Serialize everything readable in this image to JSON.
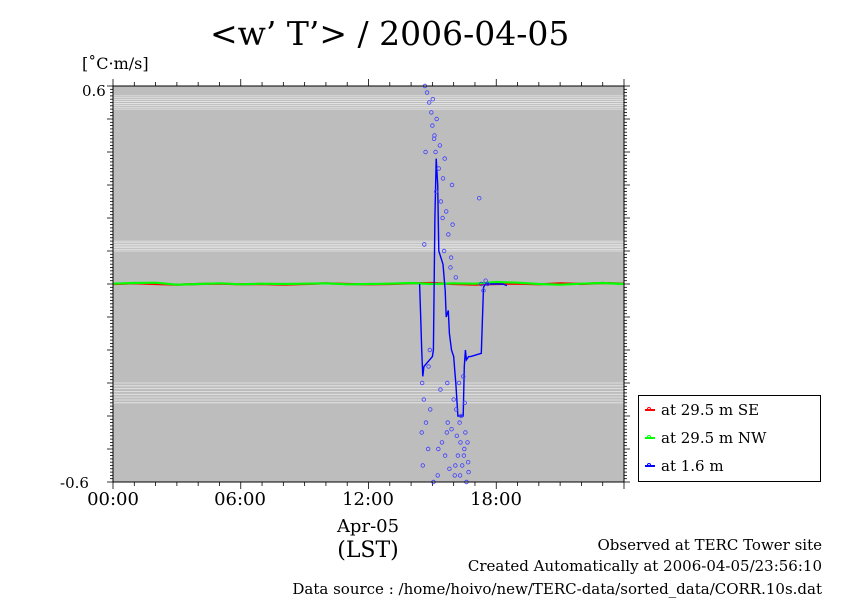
{
  "title": "<w’ T’> / 2006-04-05",
  "unit": "[˚C·m/s]",
  "chart_data": {
    "type": "line",
    "xlabel": "(LST)",
    "x_date_label": "Apr-05",
    "x_ticks": [
      "00:00",
      "06:00",
      "12:00",
      "18:00"
    ],
    "xlim_hours": [
      0,
      24
    ],
    "ylim": [
      -0.6,
      0.6
    ],
    "y_bottom_label": "-0.6",
    "y_top_label": "0.6",
    "grid": "horizontal",
    "legend_position": "bottom-right",
    "background": "#bdbdbd",
    "series": [
      {
        "name": "at 29.5 m SE",
        "color": "#ff0000",
        "x": [
          0,
          1,
          2,
          3,
          4,
          5,
          6,
          7,
          8,
          9,
          10,
          11,
          12,
          13,
          14,
          15,
          16,
          17,
          18,
          19,
          20,
          21,
          22,
          23,
          24
        ],
        "y": [
          0.0,
          0.002,
          0.0,
          -0.002,
          0.0,
          0.001,
          -0.001,
          0.0,
          -0.002,
          0.0,
          0.002,
          0.0,
          -0.001,
          0.0,
          0.002,
          0.003,
          0.0,
          -0.002,
          0.0,
          0.001,
          -0.001,
          0.002,
          0.0,
          0.003,
          0.001
        ]
      },
      {
        "name": "at 29.5 m NW",
        "color": "#00ff00",
        "x": [
          0,
          1,
          2,
          3,
          4,
          5,
          6,
          7,
          8,
          9,
          10,
          11,
          12,
          13,
          14,
          15,
          16,
          17,
          18,
          19,
          20,
          21,
          22,
          23,
          24
        ],
        "y": [
          0.001,
          0.003,
          0.004,
          -0.002,
          0.0,
          0.002,
          -0.001,
          0.001,
          0.0,
          0.001,
          0.002,
          -0.001,
          0.0,
          0.001,
          0.003,
          0.0,
          0.002,
          0.001,
          0.006,
          0.004,
          0.0,
          -0.002,
          0.001,
          0.003,
          0.0
        ]
      },
      {
        "name": "at 1.6 m",
        "color": "#0000ff",
        "x": [
          14.4,
          14.45,
          14.5,
          14.55,
          14.6,
          15.0,
          15.05,
          15.12,
          15.18,
          15.25,
          15.3,
          15.5,
          15.6,
          15.65,
          15.75,
          15.8,
          15.9,
          16.0,
          16.05,
          16.1,
          16.2,
          16.3,
          16.4,
          16.45,
          16.5,
          16.55,
          16.6,
          16.7,
          16.8,
          17.3,
          17.4,
          17.5,
          18.3,
          18.5
        ],
        "y": [
          0.0,
          -0.1,
          -0.2,
          -0.28,
          -0.25,
          -0.22,
          -0.2,
          0.2,
          0.38,
          0.3,
          0.1,
          0.06,
          -0.02,
          -0.1,
          -0.08,
          -0.15,
          -0.2,
          -0.22,
          -0.26,
          -0.3,
          -0.4,
          -0.4,
          -0.4,
          -0.4,
          -0.25,
          -0.2,
          -0.23,
          -0.22,
          -0.22,
          -0.21,
          -0.01,
          0.0,
          0.0,
          -0.005
        ]
      }
    ],
    "scatter": {
      "series": "at 1.6 m",
      "color": "#4040ff",
      "x": [
        14.5,
        14.55,
        14.6,
        14.65,
        14.7,
        14.75,
        14.8,
        14.85,
        14.9,
        14.95,
        15.0,
        15.05,
        15.1,
        15.15,
        15.2,
        15.25,
        15.3,
        15.35,
        15.4,
        15.45,
        15.5,
        15.55,
        15.6,
        15.65,
        15.7,
        15.75,
        15.8,
        15.85,
        15.9,
        15.95,
        16.0,
        16.05,
        16.1,
        16.15,
        16.2,
        16.25,
        16.3,
        16.35,
        16.4,
        16.45,
        16.5,
        16.55,
        16.6,
        16.65,
        16.7,
        17.2,
        17.3,
        17.4,
        17.5,
        17.6,
        14.52,
        14.68,
        14.82,
        15.02,
        15.18,
        15.38,
        15.58,
        15.72,
        15.92,
        16.12,
        16.32,
        16.52,
        14.62,
        14.88,
        15.08,
        15.28,
        15.48,
        15.68,
        15.88,
        16.08,
        16.28,
        16.48,
        16.68
      ],
      "y": [
        -0.45,
        -0.55,
        -0.35,
        0.6,
        -0.42,
        0.58,
        -0.5,
        0.55,
        -0.38,
        0.52,
        0.48,
        -0.6,
        0.45,
        0.4,
        0.5,
        -0.58,
        0.35,
        0.42,
        0.25,
        -0.48,
        0.32,
        0.1,
        -0.52,
        0.22,
        -0.3,
        0.15,
        -0.56,
        0.05,
        -0.44,
        0.18,
        -0.35,
        -0.58,
        0.02,
        -0.46,
        -0.52,
        -0.3,
        -0.58,
        -0.4,
        -0.55,
        -0.28,
        -0.5,
        -0.45,
        -0.6,
        -0.48,
        -0.57,
        0.26,
        0.0,
        -0.02,
        0.01,
        0.0,
        -0.3,
        0.4,
        -0.25,
        0.56,
        0.28,
        -0.32,
        0.38,
        -0.42,
        0.3,
        -0.38,
        -0.48,
        -0.36,
        0.12,
        -0.2,
        0.44,
        -0.5,
        0.2,
        -0.45,
        0.08,
        -0.55,
        -0.42,
        -0.52,
        -0.54
      ]
    }
  },
  "footer": {
    "line1": "Observed at TERC Tower site",
    "line2": "Created Automatically at 2006-04-05/23:56:10",
    "line3": "Data source : /home/hoivo/new/TERC-data/sorted_data/CORR.10s.dat"
  }
}
